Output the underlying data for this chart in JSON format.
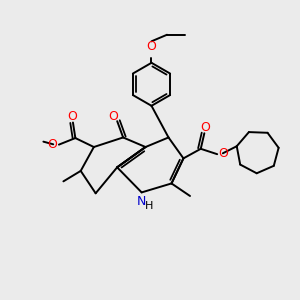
{
  "bg_color": "#ebebeb",
  "bond_color": "#000000",
  "o_color": "#ff0000",
  "n_color": "#0000cd",
  "lw": 1.4,
  "figsize": [
    3.0,
    3.0
  ],
  "dpi": 100,
  "xlim": [
    0,
    10
  ],
  "ylim": [
    0,
    10
  ]
}
